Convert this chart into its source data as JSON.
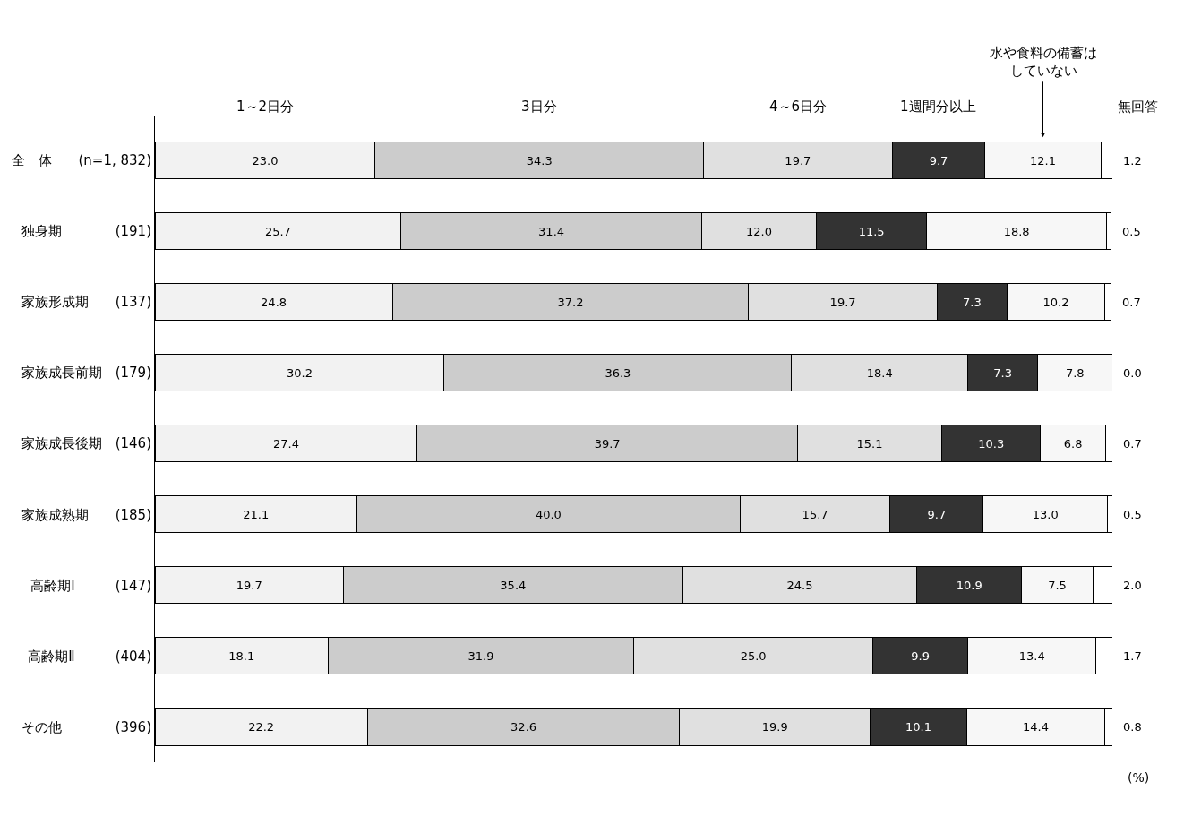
{
  "chart_data": {
    "type": "bar",
    "orientation": "horizontal",
    "stacked": true,
    "data_labels": true,
    "tick_labels": "y",
    "xlim": [
      0,
      100
    ],
    "categories": [
      "全　体　　(n=1, 832)",
      "独身期　　　　(191)",
      "家族形成期　　(137)",
      "家族成長前期　(179)",
      "家族成長後期　(146)",
      "家族成熟期　　(185)",
      "高齢期Ⅰ　　　(147)",
      "高齢期Ⅱ　　　(404)",
      "その他　　　　(396)"
    ],
    "series": [
      {
        "name": "1～2日分",
        "color": "#f2f2f2",
        "values": [
          23.0,
          25.7,
          24.8,
          30.2,
          27.4,
          21.1,
          19.7,
          18.1,
          22.2
        ],
        "value_labels": [
          "23.0",
          "25.7",
          "24.8",
          "30.2",
          "27.4",
          "21.1",
          "19.7",
          "18.1",
          "22.2"
        ]
      },
      {
        "name": "3日分",
        "color": "#cccccc",
        "values": [
          34.3,
          31.4,
          37.2,
          36.3,
          39.7,
          40.0,
          35.4,
          31.9,
          32.6
        ],
        "value_labels": [
          "34.3",
          "31.4",
          "37.2",
          "36.3",
          "39.7",
          "40.0",
          "35.4",
          "31.9",
          "32.6"
        ]
      },
      {
        "name": "4～6日分",
        "color": "#e0e0e0",
        "values": [
          19.7,
          12.0,
          19.7,
          18.4,
          15.1,
          15.7,
          24.5,
          25.0,
          19.9
        ],
        "value_labels": [
          "19.7",
          "12.0",
          "19.7",
          "18.4",
          "15.1",
          "15.7",
          "24.5",
          "25.0",
          "19.9"
        ]
      },
      {
        "name": "1週間分以上",
        "color": "#333333",
        "values": [
          9.7,
          11.5,
          7.3,
          7.3,
          10.3,
          9.7,
          10.9,
          9.9,
          10.1
        ],
        "value_labels": [
          "9.7",
          "11.5",
          "7.3",
          "7.3",
          "10.3",
          "9.7",
          "10.9",
          "9.9",
          "10.1"
        ]
      },
      {
        "name": "水や食料の備蓄はしていない",
        "color": "#f7f7f7",
        "values": [
          12.1,
          18.8,
          10.2,
          7.8,
          6.8,
          13.0,
          7.5,
          13.4,
          14.4
        ],
        "value_labels": [
          "12.1",
          "18.8",
          "10.2",
          "7.8",
          "6.8",
          "13.0",
          "7.5",
          "13.4",
          "14.4"
        ]
      },
      {
        "name": "無回答",
        "color": "#ffffff",
        "values": [
          1.2,
          0.5,
          0.7,
          0.0,
          0.7,
          0.5,
          2.0,
          1.7,
          0.8
        ],
        "value_labels": [
          "1.2",
          "0.5",
          "0.7",
          "0.0",
          "0.7",
          "0.5",
          "2.0",
          "1.7",
          "0.8"
        ]
      }
    ],
    "annotations": [
      "(%)"
    ]
  }
}
